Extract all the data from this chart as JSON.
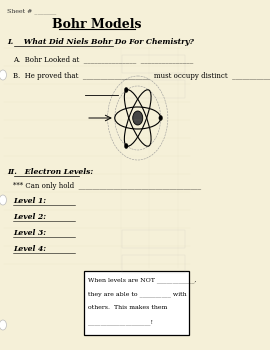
{
  "bg_color": "#f5f0d8",
  "title": "Bohr Models",
  "sheet_label": "Sheet # _______",
  "section1_header": "I.    What Did Niels Bohr Do For Chemistry?",
  "section1_a": "A.  Bohr Looked at  _______________  _______________",
  "section1_b": "B.  He proved that  ___________________  must occupy distinct  _______________",
  "section2_header": "II.   Electron Levels:",
  "section2_sub": "*** Can only hold  ___________________________________",
  "levels": [
    "Level 1:",
    "Level 2:",
    "Level 3:",
    "Level 4:"
  ],
  "box_text_line1": "When levels are NOT ____________,",
  "box_text_line2": "they are able to __________ with",
  "box_text_line3": "others.  This makes them",
  "box_text_line4": "____________________!"
}
